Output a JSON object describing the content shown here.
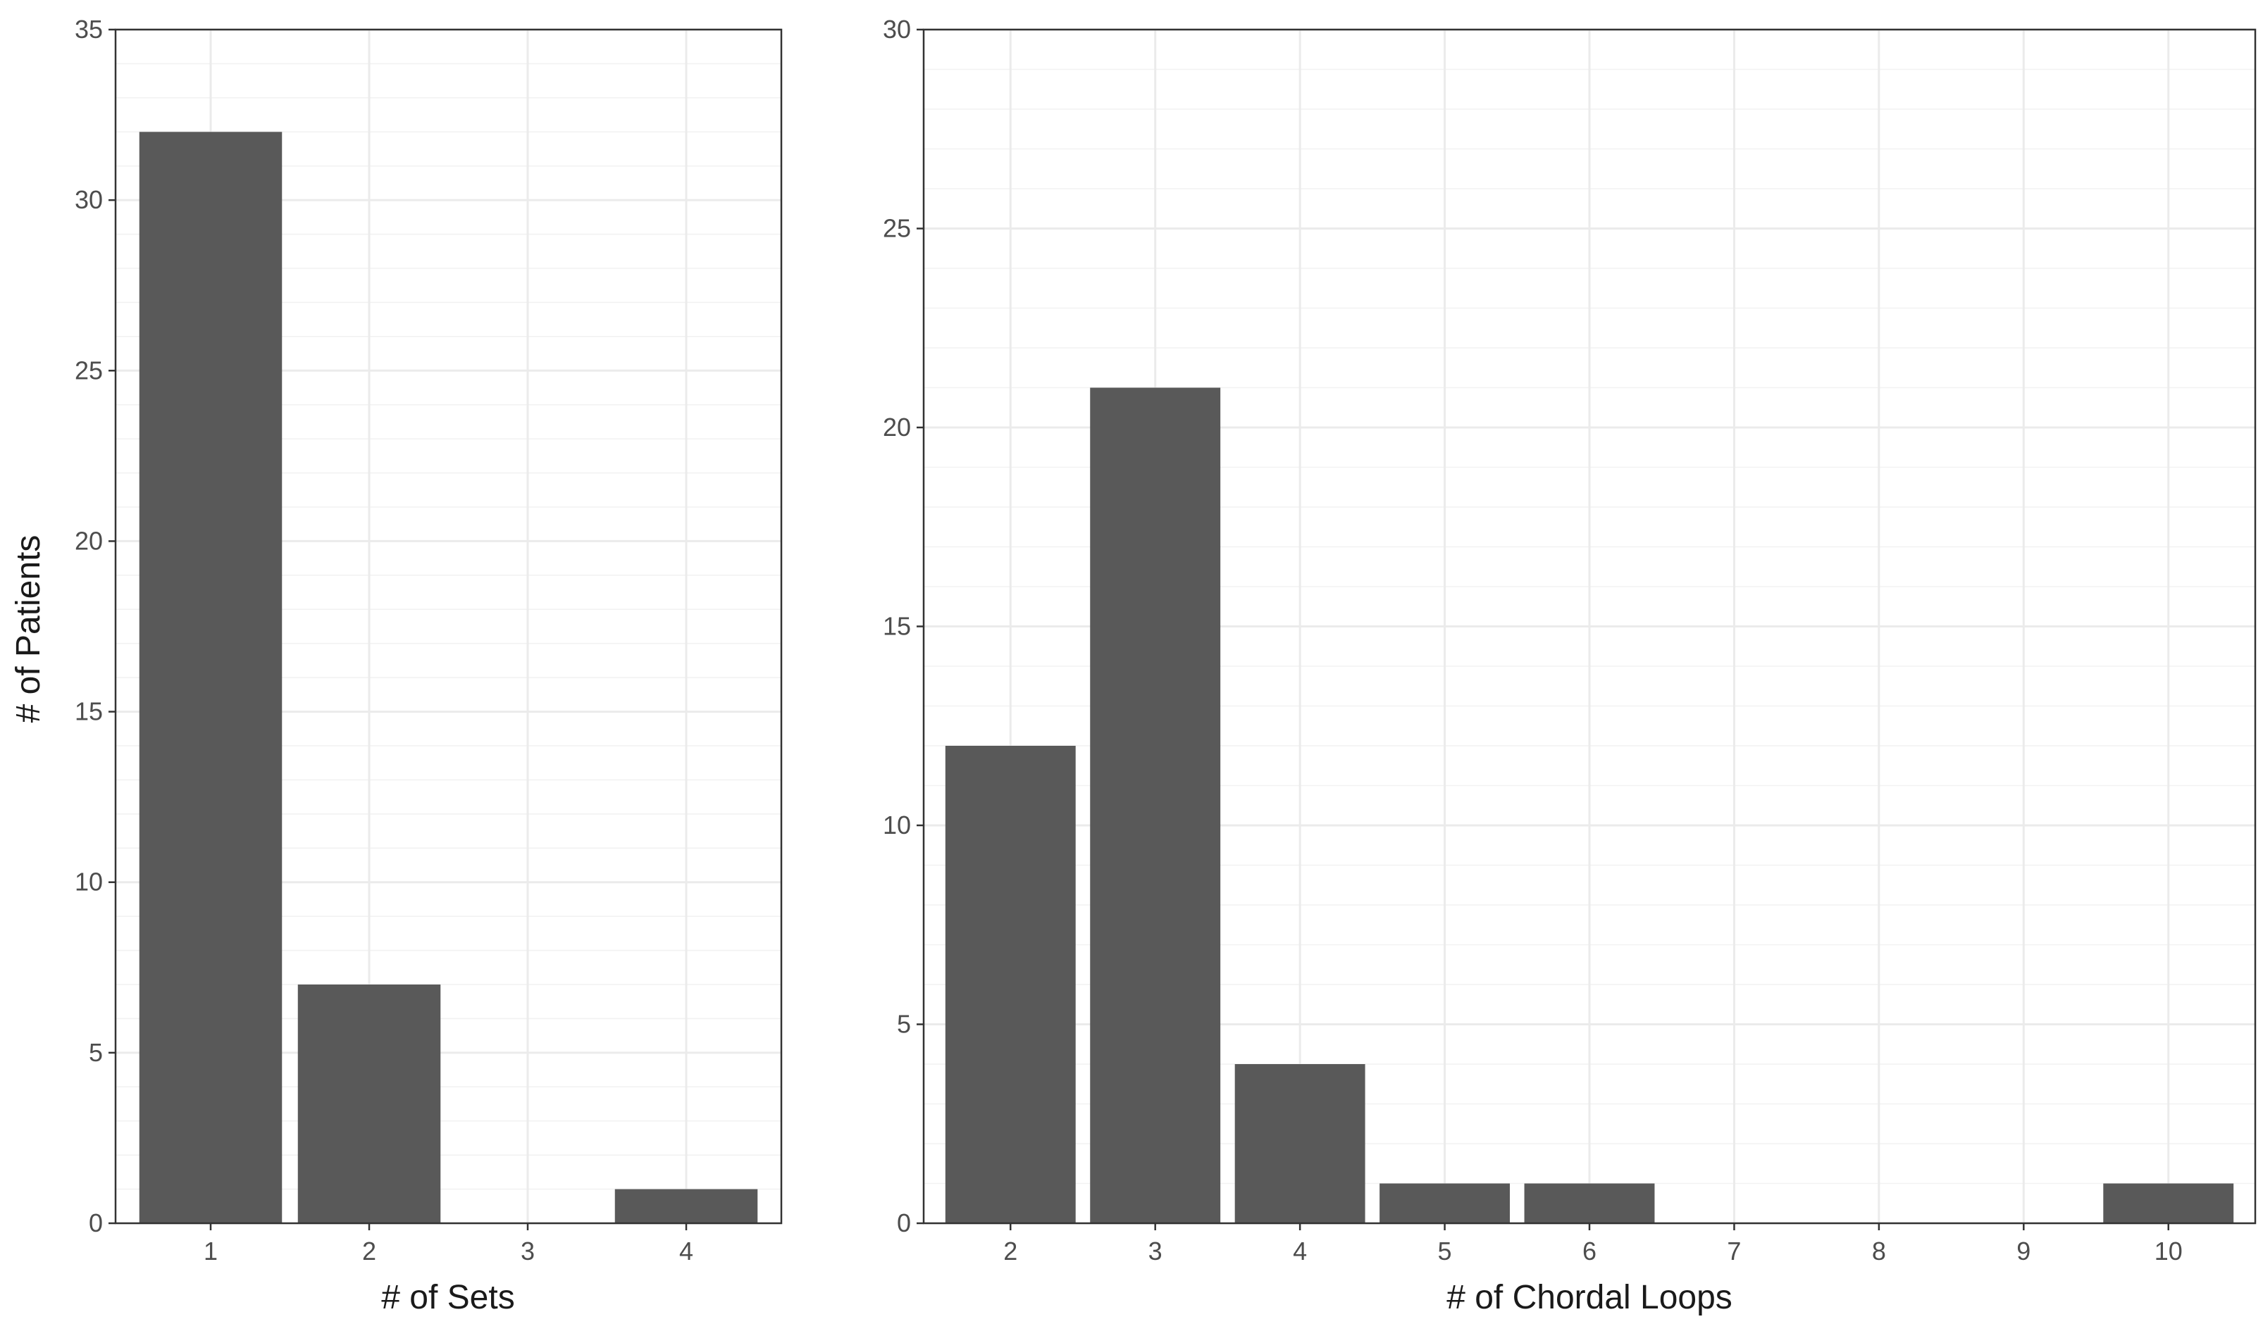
{
  "colors": {
    "bar": "#595959",
    "background": "#ffffff"
  },
  "chart_data": [
    {
      "type": "bar",
      "title": "",
      "xlabel": "# of Sets",
      "ylabel": "# of Patients",
      "categories": [
        "1",
        "2",
        "3",
        "4"
      ],
      "values": [
        32,
        7,
        0,
        1
      ],
      "ylim": [
        0,
        35
      ],
      "yticks": [
        0,
        5,
        10,
        15,
        20,
        25,
        30,
        35
      ],
      "grid": true
    },
    {
      "type": "bar",
      "title": "",
      "xlabel": "# of Chordal Loops",
      "ylabel": "",
      "categories": [
        "2",
        "3",
        "4",
        "5",
        "6",
        "7",
        "8",
        "9",
        "10"
      ],
      "values": [
        12,
        21,
        4,
        1,
        1,
        0,
        0,
        0,
        1
      ],
      "ylim": [
        0,
        30
      ],
      "yticks": [
        0,
        5,
        10,
        15,
        20,
        25,
        30
      ],
      "grid": true
    }
  ]
}
